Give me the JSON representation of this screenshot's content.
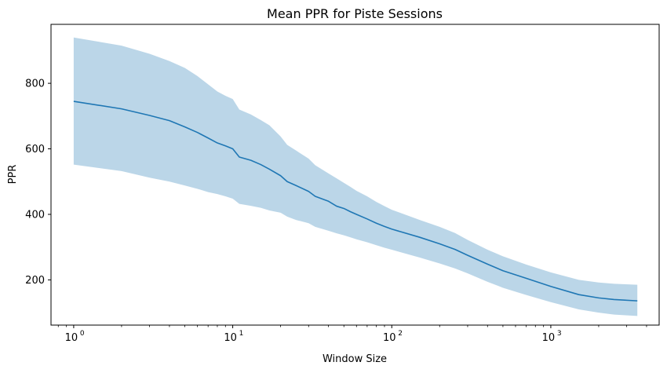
{
  "chart_data": {
    "type": "line",
    "title": "Mean PPR for Piste Sessions",
    "xlabel": "Window Size",
    "ylabel": "PPR",
    "xscale": "log",
    "xlim": [
      0.72,
      4800
    ],
    "ylim": [
      62,
      980
    ],
    "grid": false,
    "legend": "none",
    "line_color": "#1f77b4",
    "band_color": "#1f77b4",
    "band_opacity": 0.3,
    "x_ticks": [
      {
        "base": "10",
        "exp": "0",
        "value": 1
      },
      {
        "base": "10",
        "exp": "1",
        "value": 10
      },
      {
        "base": "10",
        "exp": "2",
        "value": 100
      },
      {
        "base": "10",
        "exp": "3",
        "value": 1000
      }
    ],
    "y_ticks": [
      200,
      400,
      600,
      800
    ],
    "series": [
      {
        "x": [
          1,
          2,
          3,
          4,
          5,
          6,
          7,
          8,
          9,
          10,
          11,
          13,
          15,
          17,
          20,
          22,
          25,
          30,
          33,
          40,
          45,
          50,
          55,
          60,
          70,
          80,
          90,
          100,
          150,
          200,
          250,
          300,
          400,
          500,
          700,
          1000,
          1500,
          2000,
          2500,
          3500
        ],
        "mean": [
          745,
          722,
          702,
          686,
          667,
          650,
          633,
          618,
          609,
          600,
          575,
          565,
          552,
          538,
          518,
          500,
          488,
          470,
          455,
          440,
          425,
          418,
          408,
          400,
          386,
          373,
          363,
          355,
          330,
          310,
          293,
          275,
          248,
          228,
          205,
          180,
          155,
          145,
          140,
          136
        ],
        "upper": [
          940,
          915,
          890,
          868,
          847,
          822,
          797,
          775,
          762,
          752,
          720,
          705,
          688,
          672,
          638,
          612,
          595,
          570,
          550,
          525,
          510,
          496,
          484,
          472,
          455,
          438,
          425,
          414,
          383,
          362,
          343,
          322,
          292,
          272,
          247,
          223,
          200,
          192,
          188,
          185
        ],
        "lower": [
          552,
          532,
          512,
          500,
          488,
          478,
          468,
          462,
          455,
          448,
          432,
          426,
          420,
          412,
          405,
          393,
          383,
          373,
          362,
          350,
          342,
          336,
          330,
          324,
          315,
          306,
          298,
          292,
          268,
          250,
          235,
          220,
          194,
          176,
          154,
          132,
          110,
          100,
          94,
          90
        ]
      }
    ]
  }
}
